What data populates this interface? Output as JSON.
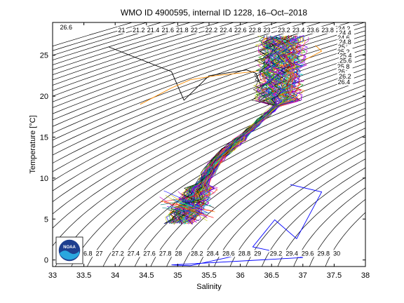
{
  "chart_data": {
    "type": "scatter",
    "title": "WMO ID 4900595, internal ID 1228, 16–Oct–2018",
    "xlabel": "Salinity",
    "ylabel": "Temperature [°C]",
    "xlim": [
      33,
      38
    ],
    "ylim": [
      -0.8,
      29
    ],
    "xticks": [
      "33",
      "33.5",
      "34",
      "34.5",
      "35",
      "35.5",
      "36",
      "36.5",
      "37",
      "37.5",
      "38"
    ],
    "yticks": [
      "0",
      "5",
      "10",
      "15",
      "20",
      "25"
    ],
    "grid": false,
    "density_labels": [
      "21",
      "21.2",
      "21.4",
      "21.6",
      "21.8",
      "22",
      "22.2",
      "22.4",
      "22.6",
      "22.8",
      "23",
      "23.2",
      "23.4",
      "23.6",
      "23.8",
      "24",
      "24.2",
      "24.4",
      "24.6",
      "24.8",
      "25",
      "25.2",
      "25.4",
      "25.6",
      "25.8",
      "26",
      "26.2",
      "26.4",
      "26.6",
      "26.8",
      "27",
      "27.2",
      "27.4",
      "27.6",
      "27.8",
      "28",
      "28.2",
      "28.4",
      "28.6",
      "28.8",
      "29",
      "29.2",
      "29.4",
      "29.6",
      "29.8",
      "30"
    ],
    "profile_path": [
      [
        34.4,
        19
      ],
      [
        34.9,
        21
      ],
      [
        35.2,
        22
      ],
      [
        35.6,
        22.5
      ],
      [
        36.1,
        22.9
      ],
      [
        36.5,
        23.3
      ],
      [
        36.75,
        23.6
      ],
      [
        36.95,
        24
      ],
      [
        37.05,
        24.5
      ],
      [
        37.3,
        25.5
      ],
      [
        37.2,
        26.2
      ]
    ],
    "black_track": [
      [
        33.9,
        26.0
      ],
      [
        34.9,
        23.0
      ],
      [
        35.1,
        19.5
      ],
      [
        35.5,
        22.5
      ],
      [
        36.1,
        23.2
      ],
      [
        36.25,
        22.8
      ],
      [
        36.45,
        18.9
      ]
    ],
    "blue_track": [
      [
        36.8,
        9.2
      ],
      [
        37.3,
        8.3
      ],
      [
        36.9,
        2.6
      ],
      [
        36.55,
        4.9
      ],
      [
        36.2,
        1.6
      ],
      [
        37.0,
        0.3
      ],
      [
        34.9,
        -0.6
      ],
      [
        35.2,
        -0.7
      ],
      [
        36.1,
        0.8
      ]
    ]
  },
  "logo": {
    "text": "NOAA",
    "colors": {
      "dark": "#1f3f8f",
      "light": "#2aa7df"
    }
  },
  "line_colors": [
    "#ff0000",
    "#00a000",
    "#0000ff",
    "#00c8c8",
    "#c800c8",
    "#c8c800",
    "#000000",
    "#ff8c00",
    "#7f00ff",
    "#008080"
  ]
}
